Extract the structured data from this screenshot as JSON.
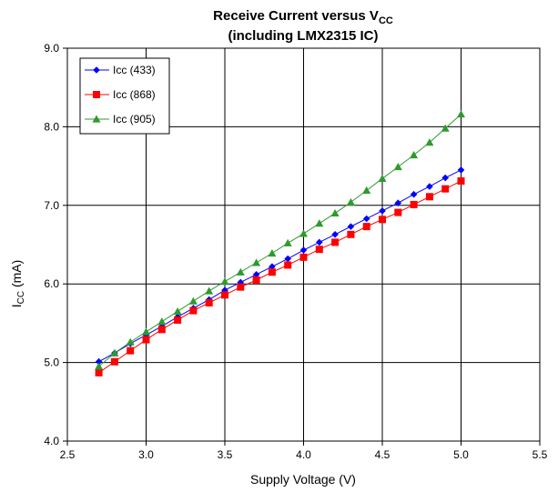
{
  "chart_data": {
    "type": "line",
    "title_line1_main": "Receive Current versus V",
    "title_line1_sub": "CC",
    "title_line2": "(including LMX2315 IC)",
    "xlabel": "Supply Voltage (V)",
    "ylabel_main": "I",
    "ylabel_sub": "CC",
    "ylabel_unit": " (mA)",
    "xlim": [
      2.5,
      5.5
    ],
    "ylim": [
      4.0,
      9.0
    ],
    "x_ticks": [
      "2.5",
      "3.0",
      "3.5",
      "4.0",
      "4.5",
      "5.0",
      "5.5"
    ],
    "y_ticks": [
      "4.0",
      "5.0",
      "6.0",
      "7.0",
      "8.0",
      "9.0"
    ],
    "grid": true,
    "legend_position": "top-left",
    "x": [
      2.7,
      2.8,
      2.9,
      3.0,
      3.1,
      3.2,
      3.3,
      3.4,
      3.5,
      3.6,
      3.7,
      3.8,
      3.9,
      4.0,
      4.1,
      4.2,
      4.3,
      4.4,
      4.5,
      4.6,
      4.7,
      4.8,
      4.9,
      5.0
    ],
    "series": [
      {
        "name": "Icc (433)",
        "color": "#0000ff",
        "marker": "diamond",
        "values": [
          5.01,
          5.12,
          5.24,
          5.35,
          5.46,
          5.58,
          5.69,
          5.8,
          5.92,
          6.02,
          6.12,
          6.22,
          6.32,
          6.43,
          6.53,
          6.63,
          6.73,
          6.83,
          6.93,
          7.03,
          7.14,
          7.24,
          7.35,
          7.45
        ]
      },
      {
        "name": "Icc (868)",
        "color": "#ff0000",
        "marker": "square",
        "values": [
          4.87,
          5.01,
          5.15,
          5.29,
          5.42,
          5.54,
          5.66,
          5.76,
          5.86,
          5.96,
          6.05,
          6.15,
          6.24,
          6.34,
          6.44,
          6.53,
          6.63,
          6.73,
          6.82,
          6.91,
          7.01,
          7.11,
          7.21,
          7.31
        ]
      },
      {
        "name": "Icc (905)",
        "color": "#2e9a2e",
        "marker": "triangle",
        "values": [
          4.95,
          5.12,
          5.26,
          5.39,
          5.52,
          5.65,
          5.78,
          5.91,
          6.03,
          6.15,
          6.27,
          6.39,
          6.52,
          6.64,
          6.77,
          6.9,
          7.04,
          7.19,
          7.34,
          7.49,
          7.64,
          7.8,
          7.98,
          8.16
        ]
      }
    ]
  }
}
